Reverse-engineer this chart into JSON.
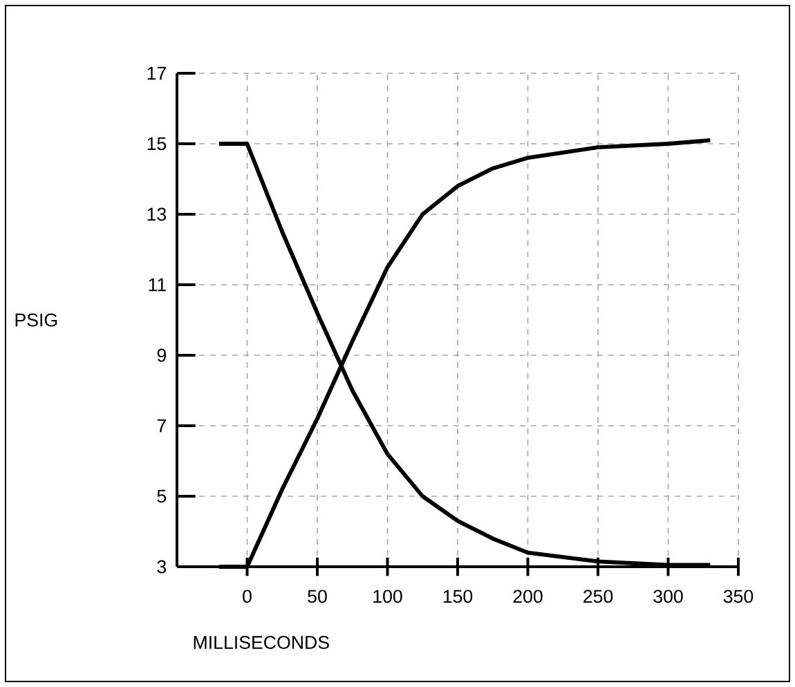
{
  "chart_data": {
    "type": "line",
    "xlabel": "MILLISECONDS",
    "ylabel": "PSIG",
    "xlim": [
      -50,
      350
    ],
    "ylim": [
      3,
      17
    ],
    "xticks": [
      0,
      50,
      100,
      150,
      200,
      250,
      300,
      350
    ],
    "yticks": [
      3,
      5,
      7,
      9,
      11,
      13,
      15,
      17
    ],
    "grid": true,
    "marker": "none",
    "line_style": "solid",
    "series": [
      {
        "color": "#000000",
        "x": [
          -20,
          0,
          25,
          50,
          75,
          100,
          125,
          150,
          175,
          200,
          250,
          300,
          330
        ],
        "values": [
          15,
          15,
          12.5,
          10.2,
          8,
          6.2,
          5,
          4.3,
          3.8,
          3.4,
          3.15,
          3.05,
          3.05
        ]
      },
      {
        "color": "#000000",
        "x": [
          -20,
          0,
          25,
          50,
          75,
          100,
          125,
          150,
          175,
          200,
          250,
          300,
          330
        ],
        "values": [
          3,
          3,
          5.2,
          7.2,
          9.4,
          11.5,
          13,
          13.8,
          14.3,
          14.6,
          14.9,
          15,
          15.1
        ]
      }
    ]
  }
}
